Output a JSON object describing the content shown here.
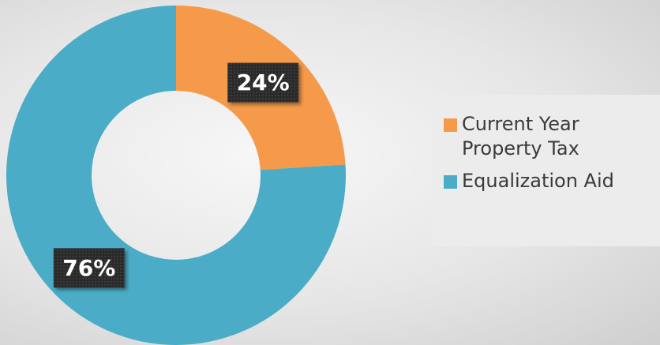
{
  "chart_data": {
    "type": "donut",
    "categories": [
      "Current Year Property Tax",
      "Equalization Aid"
    ],
    "values": [
      24,
      76
    ],
    "value_labels": [
      "24%",
      "76%"
    ],
    "colors": [
      "#f59a4a",
      "#4aacc6"
    ]
  }
}
